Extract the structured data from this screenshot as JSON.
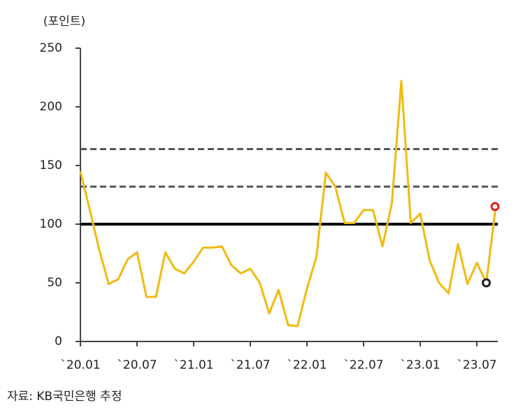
{
  "chart_data": {
    "type": "line",
    "y_label": "(포인트)",
    "source": "자료: KB국민은행 추정",
    "categories": [
      "`20.01",
      null,
      null,
      null,
      null,
      null,
      "`20.07",
      null,
      null,
      null,
      null,
      null,
      "`21.01",
      null,
      null,
      null,
      null,
      null,
      "`21.07",
      null,
      null,
      null,
      null,
      null,
      "`22.01",
      null,
      null,
      null,
      null,
      null,
      "`22.07",
      null,
      null,
      null,
      null,
      null,
      "`23.01",
      null,
      null,
      null,
      null,
      null,
      "`23.07",
      null,
      null
    ],
    "series": [
      {
        "color": "#f2b90f",
        "values": [
          145,
          112,
          78,
          49,
          53,
          70,
          76,
          38,
          38,
          76,
          62,
          58,
          68,
          80,
          80,
          81,
          65,
          58,
          62,
          50,
          24,
          44,
          14,
          13,
          45,
          72,
          144,
          132,
          101,
          101,
          112,
          112,
          81,
          118,
          222,
          101,
          109,
          69,
          50,
          41,
          83,
          49,
          67,
          50,
          115
        ]
      }
    ],
    "markers": [
      {
        "index": 43,
        "color": "#222222"
      },
      {
        "index": 44,
        "color": "#e02020"
      }
    ],
    "hlines": [
      {
        "value": 100,
        "style": "solid",
        "color": "#000000"
      },
      {
        "value": 132,
        "style": "dashed",
        "color": "#555555"
      },
      {
        "value": 164,
        "style": "dashed",
        "color": "#555555"
      }
    ],
    "ylim": [
      0,
      250
    ],
    "yticks": [
      0,
      50,
      100,
      150,
      200,
      250
    ]
  }
}
